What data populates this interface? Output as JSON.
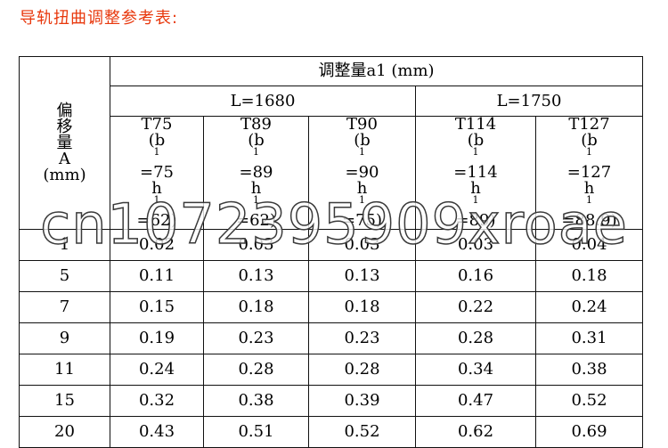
{
  "title": "导轨扭曲调整参考表:",
  "header": {
    "offset_chars": [
      "偏",
      "移",
      "量",
      "A",
      "(mm)"
    ],
    "adjust": "调整量a1 (mm)",
    "groups": [
      "L=1680",
      "L=1750"
    ]
  },
  "models": [
    {
      "name": "T75",
      "b": "(b",
      "bval": "=75",
      "h": "h",
      "hval": "=62)"
    },
    {
      "name": "T89",
      "b": "(b",
      "bval": "=89",
      "h": "h",
      "hval": "=62)"
    },
    {
      "name": "T90",
      "b": "(b",
      "bval": "=90",
      "h": "h",
      "hval": "=75)"
    },
    {
      "name": "T114",
      "b": "(b",
      "bval": "=114",
      "h": "h",
      "hval": "=89)"
    },
    {
      "name": "T127",
      "b": "(b",
      "bval": "=127",
      "h": "h",
      "hval": "=88.9)"
    }
  ],
  "sup": "1",
  "rows": [
    [
      "1",
      "0.02",
      "0.03",
      "0.03",
      "0.03",
      "0.04"
    ],
    [
      "5",
      "0.11",
      "0.13",
      "0.13",
      "0.16",
      "0.18"
    ],
    [
      "7",
      "0.15",
      "0.18",
      "0.18",
      "0.22",
      "0.24"
    ],
    [
      "9",
      "0.19",
      "0.23",
      "0.23",
      "0.28",
      "0.31"
    ],
    [
      "11",
      "0.24",
      "0.28",
      "0.28",
      "0.34",
      "0.38"
    ],
    [
      "15",
      "0.32",
      "0.38",
      "0.39",
      "0.47",
      "0.52"
    ],
    [
      "20",
      "0.43",
      "0.51",
      "0.52",
      "0.62",
      "0.69"
    ]
  ],
  "watermark": "cn1072395909xroae"
}
